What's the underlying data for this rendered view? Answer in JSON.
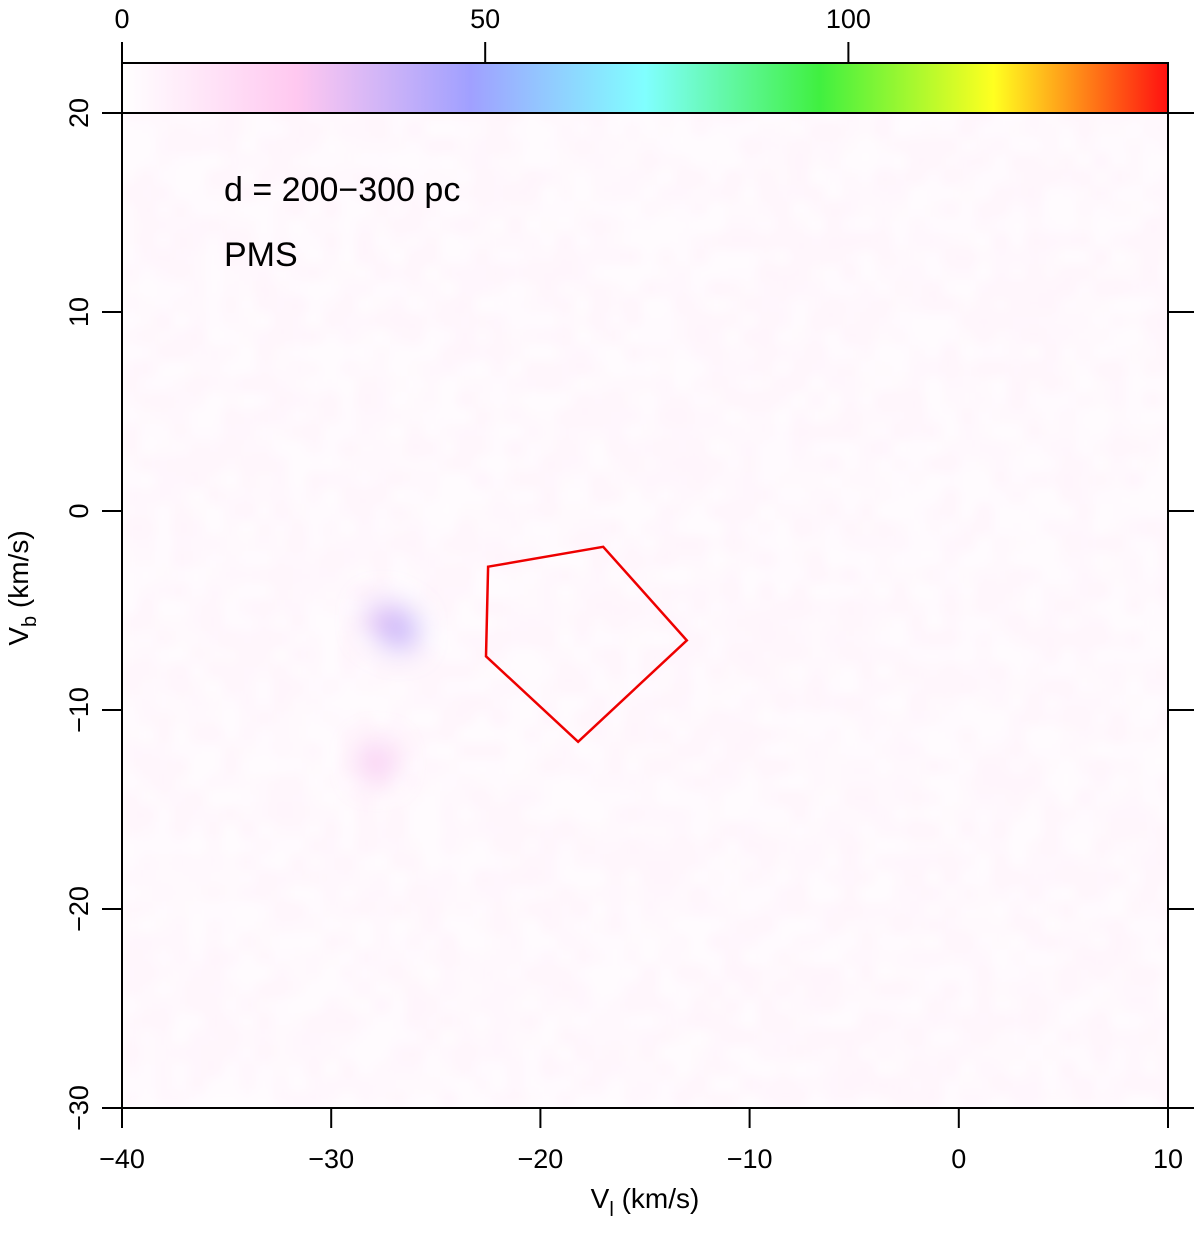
{
  "chart_data": {
    "type": "heatmap",
    "xlabel_main": "V",
    "xlabel_sub": "l",
    "xlabel_unit": " (km/s)",
    "ylabel_main": "V",
    "ylabel_sub": "b",
    "ylabel_unit": " (km/s)",
    "xlim": [
      -40,
      10
    ],
    "ylim": [
      -30,
      20
    ],
    "x_ticks": [
      -40,
      -30,
      -20,
      -10,
      0,
      10
    ],
    "x_tick_labels": [
      "−40",
      "−30",
      "−20",
      "−10",
      "0",
      "10"
    ],
    "y_ticks": [
      -30,
      -20,
      -10,
      0,
      10,
      20
    ],
    "y_tick_labels": [
      "−30",
      "−20",
      "−10",
      "0",
      "10",
      "20"
    ],
    "colorbar": {
      "range": [
        0,
        144
      ],
      "ticks": [
        0,
        50,
        100
      ],
      "tick_labels": [
        "0",
        "50",
        "100"
      ],
      "colors": [
        "#ffffff",
        "#ffc8f0",
        "#a0a0ff",
        "#80ffff",
        "#40f040",
        "#ffff20",
        "#ff1010"
      ]
    },
    "annotations": [
      "d = 200−300 pc",
      "PMS"
    ],
    "density_peaks": [
      {
        "x": -27.5,
        "y": -5.5,
        "value": 32
      },
      {
        "x": -27.8,
        "y": -12.6,
        "value": 26
      },
      {
        "x": -26.7,
        "y": -6.0,
        "value": 40
      }
    ],
    "background_level": 3,
    "polygon": {
      "color": "#ee0000",
      "vertices": [
        [
          -22.5,
          -2.8
        ],
        [
          -17.0,
          -1.8
        ],
        [
          -13.0,
          -6.5
        ],
        [
          -18.2,
          -11.6
        ],
        [
          -22.6,
          -7.3
        ]
      ]
    }
  }
}
